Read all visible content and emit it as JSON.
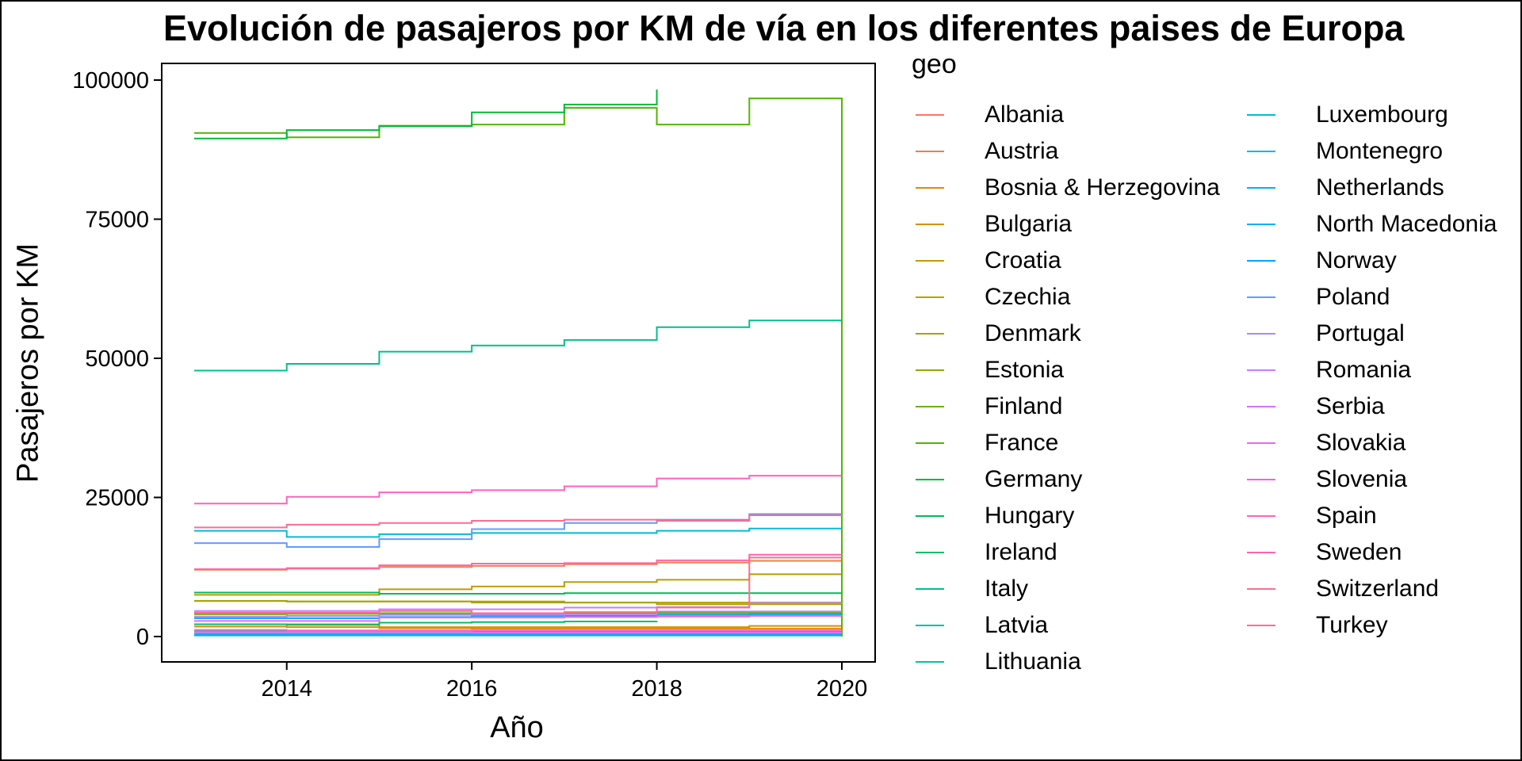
{
  "chart_data": {
    "type": "line",
    "step": "hv",
    "title": "Evolución de pasajeros por KM de vía en los diferentes paises de Europa",
    "xlabel": "Año",
    "ylabel": "Pasajeros por KM",
    "xlim": [
      2013,
      2020
    ],
    "ylim": [
      -4500,
      103000
    ],
    "x_ticks": [
      2014,
      2016,
      2018,
      2020
    ],
    "y_ticks": [
      0,
      25000,
      50000,
      75000,
      100000
    ],
    "y_tick_labels": [
      "0",
      "25000",
      "50000",
      "75000",
      "100000"
    ],
    "x_tick_labels": [
      "2014",
      "2016",
      "2018",
      "2020"
    ],
    "grid": false,
    "legend_title": "geo",
    "legend_position": "right",
    "x": [
      2013,
      2014,
      2015,
      2016,
      2017,
      2018,
      2019,
      2020
    ],
    "series": [
      {
        "name": "Albania",
        "color": "#F8766D",
        "values": [
          300,
          300,
          300,
          300,
          300,
          300,
          300,
          300
        ]
      },
      {
        "name": "Austria",
        "color": "#EF7F49",
        "values": [
          12000,
          12200,
          12500,
          12700,
          13000,
          13300,
          13600,
          13600
        ]
      },
      {
        "name": "Bosnia & Herzegovina",
        "color": "#E38900",
        "values": [
          1800,
          1700,
          1500,
          1400,
          1400,
          1400,
          1400,
          1400
        ]
      },
      {
        "name": "Bulgaria",
        "color": "#D39200",
        "values": [
          2200,
          2200,
          1700,
          1700,
          1700,
          1700,
          1900,
          1900
        ]
      },
      {
        "name": "Croatia",
        "color": "#C09B00",
        "values": [
          7500,
          7500,
          8500,
          9000,
          9800,
          10200,
          11200,
          11200
        ]
      },
      {
        "name": "Czechia",
        "color": "#B8A000",
        "values": [
          6400,
          6300,
          6300,
          6300,
          6100,
          6100,
          6100,
          6100
        ]
      },
      {
        "name": "Denmark",
        "color": "#A3A500",
        "values": [
          6400,
          6300,
          6300,
          6100,
          6100,
          5800,
          5800,
          5800
        ]
      },
      {
        "name": "Estonia",
        "color": "#8EAB00",
        "values": [
          4000,
          4100,
          4100,
          4100,
          4100,
          4200,
          4200,
          4200
        ]
      },
      {
        "name": "Finland",
        "color": "#6BB100",
        "values": [
          4100,
          4100,
          4200,
          4200,
          4300,
          4300,
          4300,
          4300
        ]
      },
      {
        "name": "France",
        "color": "#53B400",
        "values": [
          90500,
          89700,
          91800,
          92000,
          95000,
          92000,
          96700,
          0
        ]
      },
      {
        "name": "Germany",
        "color": "#00BA38",
        "values": [
          89500,
          91000,
          91700,
          94200,
          95600,
          98300,
          null,
          null
        ]
      },
      {
        "name": "Hungary",
        "color": "#00BC56",
        "values": [
          7900,
          7900,
          7700,
          7700,
          7800,
          7800,
          7800,
          7800
        ]
      },
      {
        "name": "Ireland",
        "color": "#00BE6C",
        "values": [
          2200,
          2100,
          2500,
          2600,
          2700,
          2800,
          null,
          null
        ]
      },
      {
        "name": "Italy",
        "color": "#00C08B",
        "values": [
          47800,
          49000,
          51200,
          52300,
          53300,
          55600,
          56800,
          56800
        ]
      },
      {
        "name": "Latvia",
        "color": "#00C1A1",
        "values": [
          1000,
          1000,
          900,
          900,
          900,
          900,
          900,
          900
        ]
      },
      {
        "name": "Lithuania",
        "color": "#00C0B8",
        "values": [
          500,
          500,
          500,
          500,
          500,
          500,
          500,
          500
        ]
      },
      {
        "name": "Luxembourg",
        "color": "#00BDD2",
        "values": [
          19000,
          17900,
          18400,
          18600,
          18600,
          19000,
          19400,
          19400
        ]
      },
      {
        "name": "Montenegro",
        "color": "#00B9E3",
        "values": [
          400,
          400,
          400,
          400,
          400,
          400,
          400,
          400
        ]
      },
      {
        "name": "Netherlands",
        "color": "#00B4F0",
        "values": [
          300,
          300,
          300,
          300,
          300,
          300,
          300,
          300
        ]
      },
      {
        "name": "North Macedonia",
        "color": "#00ADFA",
        "values": [
          200,
          200,
          200,
          200,
          200,
          200,
          200,
          200
        ]
      },
      {
        "name": "Norway",
        "color": "#00A5FF",
        "values": [
          3300,
          3300,
          3500,
          3700,
          3700,
          3900,
          4000,
          4000
        ]
      },
      {
        "name": "Poland",
        "color": "#619CFF",
        "values": [
          16800,
          16100,
          17500,
          19300,
          20400,
          21000,
          22000,
          22000
        ]
      },
      {
        "name": "Portugal",
        "color": "#A58AFF",
        "values": [
          3600,
          3700,
          3900,
          3900,
          4000,
          4500,
          4500,
          4500
        ]
      },
      {
        "name": "Romania",
        "color": "#C77CFF",
        "values": [
          4600,
          4600,
          4900,
          4900,
          5200,
          5300,
          6000,
          6000
        ]
      },
      {
        "name": "Serbia",
        "color": "#DF70F8",
        "values": [
          800,
          800,
          800,
          700,
          700,
          700,
          700,
          700
        ]
      },
      {
        "name": "Slovakia",
        "color": "#EF67EB",
        "values": [
          2800,
          2800,
          3400,
          3400,
          3500,
          3600,
          3700,
          3700
        ]
      },
      {
        "name": "Slovenia",
        "color": "#FB61D7",
        "values": [
          1200,
          1100,
          1100,
          1100,
          1100,
          1100,
          1100,
          1100
        ]
      },
      {
        "name": "Spain",
        "color": "#FF62BE",
        "values": [
          23900,
          25100,
          25900,
          26300,
          27000,
          28400,
          28900,
          28900
        ]
      },
      {
        "name": "Sweden",
        "color": "#FF65A9",
        "values": [
          12100,
          12300,
          12800,
          13100,
          13200,
          13700,
          14700,
          14700
        ]
      },
      {
        "name": "Switzerland",
        "color": "#FF6C91",
        "values": [
          19600,
          20100,
          20400,
          20800,
          21000,
          20800,
          21800,
          21800
        ]
      },
      {
        "name": "Turkey",
        "color": "#FF6C91",
        "values": [
          4300,
          4300,
          4600,
          4200,
          4400,
          5200,
          14200,
          14200
        ]
      }
    ]
  }
}
